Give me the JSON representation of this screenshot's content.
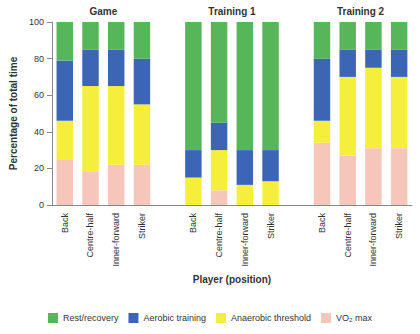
{
  "chart_data": {
    "type": "bar",
    "stacked": true,
    "xlabel": "Player (position)",
    "ylabel": "Percentage of total time",
    "annotations": [
      "Game",
      "Training 1",
      "Training 2"
    ],
    "categories": [
      "Back",
      "Centre-half",
      "Inner-forward",
      "Striker",
      null,
      "Back",
      "Centre-half",
      "Inner-forward",
      "Striker",
      null,
      "Back",
      "Centre-half",
      "Inner-forward",
      "Striker"
    ],
    "series": [
      {
        "name": "Rest/recovery",
        "color": "#57b55a",
        "values": [
          21,
          15,
          15,
          20,
          null,
          70,
          55,
          70,
          70,
          null,
          20,
          15,
          15,
          15
        ]
      },
      {
        "name": "Aerobic training",
        "color": "#3c66b5",
        "values": [
          33,
          20,
          20,
          25,
          null,
          15,
          15,
          19,
          17,
          null,
          34,
          15,
          10,
          15
        ]
      },
      {
        "name": "Anaerobic threshold",
        "color": "#f6ee3d",
        "values": [
          21,
          47,
          43,
          33,
          null,
          15,
          22,
          11,
          13,
          null,
          12,
          43,
          44,
          39
        ]
      },
      {
        "name": "VO₂ max",
        "color": "#f7c6ba",
        "values": [
          25,
          18,
          22,
          22,
          null,
          0,
          8,
          0,
          0,
          null,
          34,
          27,
          31,
          31
        ]
      }
    ],
    "ylim": [
      0,
      100
    ],
    "yticks": [
      0,
      20,
      40,
      60,
      80,
      100
    ],
    "grid": false,
    "legend": "bottom"
  }
}
